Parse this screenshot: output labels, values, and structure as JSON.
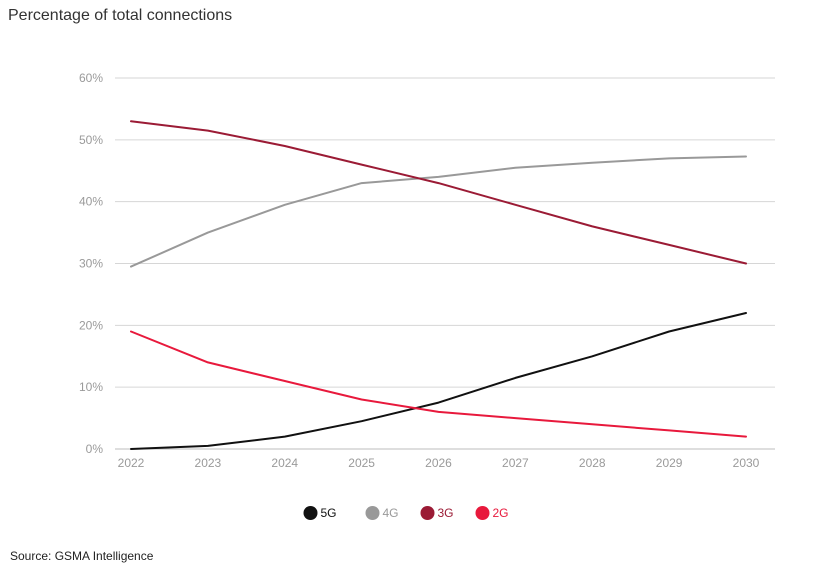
{
  "chart_data": {
    "type": "line",
    "title": "Percentage of total connections",
    "xlabel": "",
    "ylabel": "",
    "x": [
      2022,
      2023,
      2024,
      2025,
      2026,
      2027,
      2028,
      2029,
      2030
    ],
    "ylim": [
      0,
      60
    ],
    "yticks": [
      "0%",
      "10%",
      "20%",
      "30%",
      "40%",
      "50%",
      "60%"
    ],
    "ytick_values": [
      0,
      10,
      20,
      30,
      40,
      50,
      60
    ],
    "grid": "horizontal",
    "legend_position": "bottom-center",
    "series": [
      {
        "name": "5G",
        "color": "#111111",
        "values": [
          0,
          0.5,
          2,
          4.5,
          7.5,
          11.5,
          15,
          19,
          22
        ]
      },
      {
        "name": "4G",
        "color": "#999999",
        "values": [
          29.5,
          35,
          39.5,
          43,
          44,
          45.5,
          46.3,
          47,
          47.3
        ]
      },
      {
        "name": "3G",
        "color": "#9b1b35",
        "values": [
          53,
          51.5,
          49,
          46,
          43,
          39.5,
          36,
          33,
          30
        ]
      },
      {
        "name": "2G",
        "color": "#e8193c",
        "values": [
          19,
          14,
          11,
          8,
          6,
          5,
          4,
          3,
          2
        ]
      }
    ]
  },
  "source": "Source: GSMA Intelligence"
}
